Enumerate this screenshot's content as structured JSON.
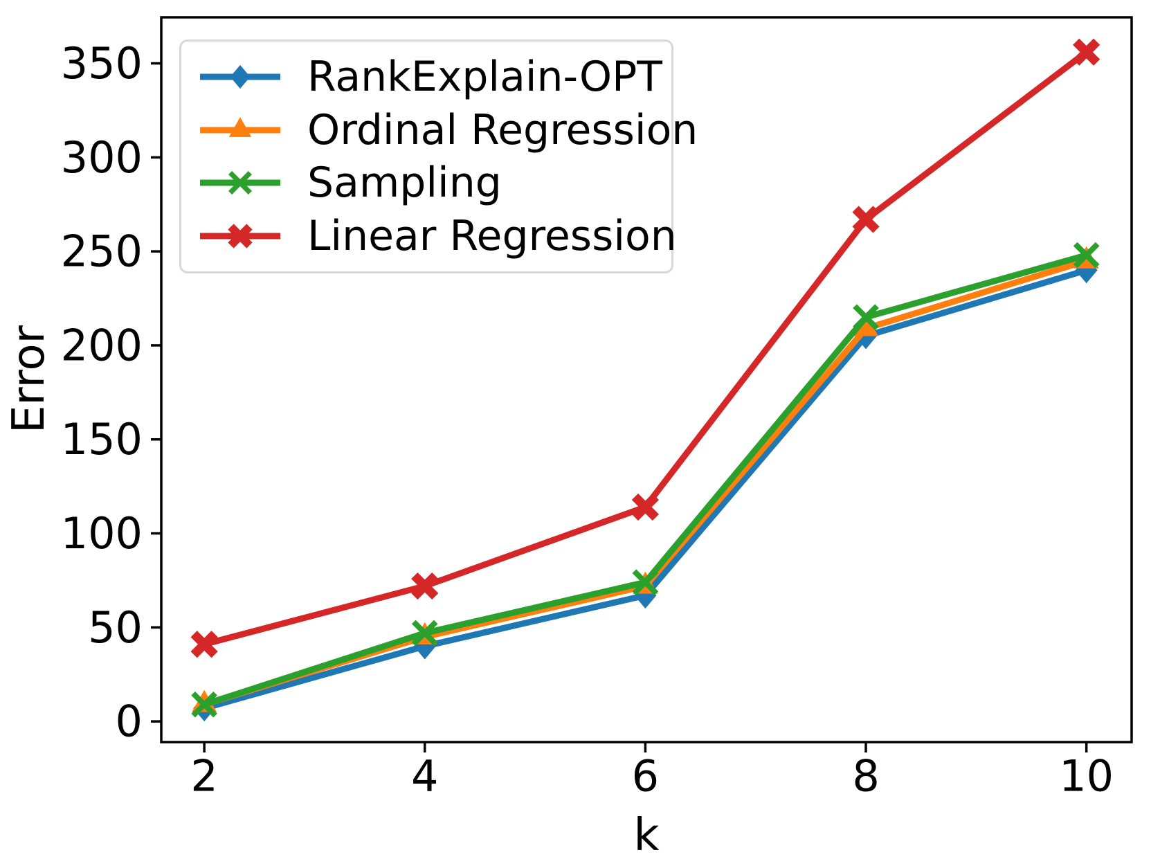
{
  "chart_data": {
    "type": "line",
    "xlabel": "k",
    "ylabel": "Error",
    "x": [
      2,
      4,
      6,
      8,
      10
    ],
    "series": [
      {
        "name": "RankExplain-OPT",
        "color": "#1f77b4",
        "marker": "diamond",
        "values": [
          7,
          40,
          67,
          205,
          240
        ]
      },
      {
        "name": "Ordinal Regression",
        "color": "#ff7f0e",
        "marker": "triangle-up",
        "values": [
          9,
          45,
          72,
          209,
          245
        ]
      },
      {
        "name": "Sampling",
        "color": "#2ca02c",
        "marker": "x-thin",
        "values": [
          9,
          47,
          74,
          215,
          248
        ]
      },
      {
        "name": "Linear Regression",
        "color": "#d62728",
        "marker": "x-thick",
        "values": [
          41,
          72,
          114,
          267,
          356
        ]
      }
    ],
    "xticks": [
      2,
      4,
      6,
      8,
      10
    ],
    "yticks": [
      0,
      50,
      100,
      150,
      200,
      250,
      300,
      350
    ],
    "xlim": [
      1.61,
      10.41
    ],
    "ylim": [
      -11,
      374.5
    ],
    "grid": false,
    "legend_position": "upper left",
    "axis_color": "#000000",
    "background_color": "#ffffff"
  }
}
